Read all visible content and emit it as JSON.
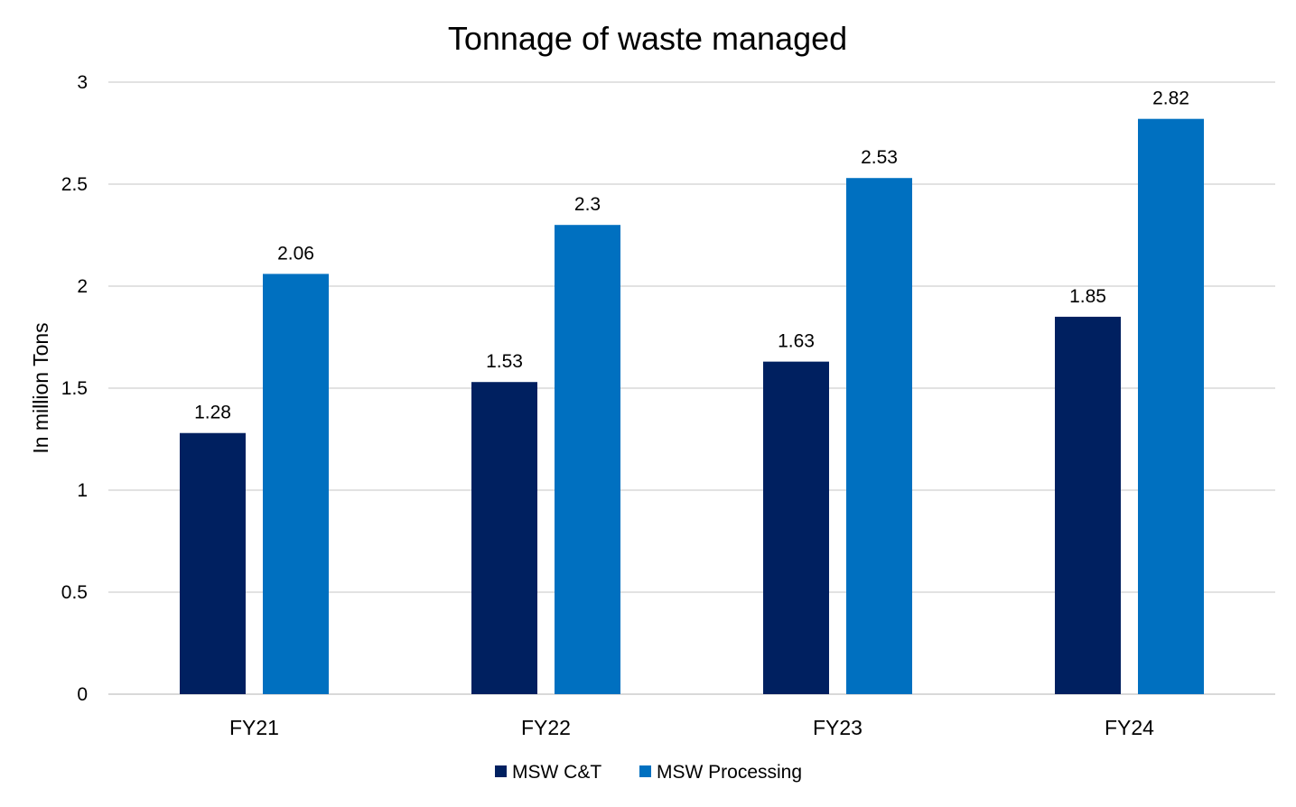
{
  "chart_data": {
    "type": "bar",
    "title": "Tonnage of waste managed",
    "xlabel": "",
    "ylabel": "In million Tons",
    "categories": [
      "FY21",
      "FY22",
      "FY23",
      "FY24"
    ],
    "series": [
      {
        "name": "MSW C&T",
        "values": [
          1.28,
          1.53,
          1.63,
          1.85
        ],
        "color": "#002060"
      },
      {
        "name": "MSW Processing",
        "values": [
          2.06,
          2.3,
          2.53,
          2.82
        ],
        "color": "#0070C0"
      }
    ],
    "value_labels": [
      [
        "1.28",
        "1.53",
        "1.63",
        "1.85"
      ],
      [
        "2.06",
        "2.3",
        "2.53",
        "2.82"
      ]
    ],
    "ylim": [
      0,
      3
    ],
    "yticks": [
      0,
      0.5,
      1,
      1.5,
      2,
      2.5,
      3
    ],
    "ytick_labels": [
      "0",
      "0.5",
      "1",
      "1.5",
      "2",
      "2.5",
      "3"
    ],
    "grid": true,
    "gridline_color": "#d9d9d9",
    "legend_position": "bottom"
  }
}
